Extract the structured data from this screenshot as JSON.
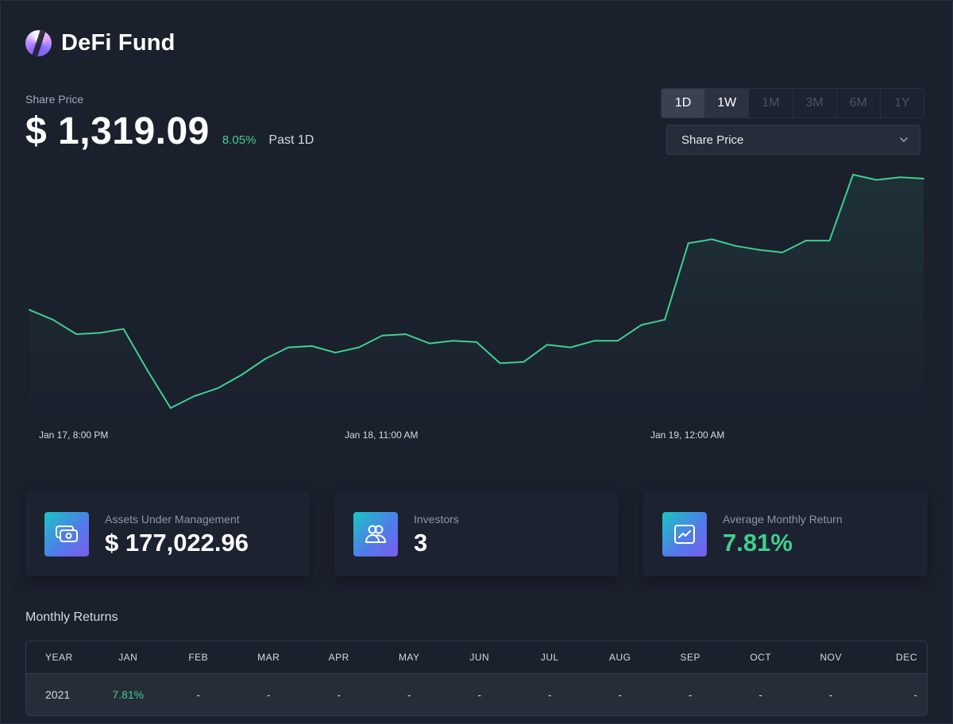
{
  "app": {
    "title": "DeFi Fund"
  },
  "price": {
    "label": "Share Price",
    "value": "$ 1,319.09",
    "change": "8.05%",
    "period": "Past 1D"
  },
  "range_tabs": [
    "1D",
    "1W",
    "1M",
    "3M",
    "6M",
    "1Y"
  ],
  "metric_select": {
    "value": "Share Price"
  },
  "chart_data": {
    "type": "area",
    "title": "",
    "xlabel": "",
    "ylabel": "",
    "x_tick_labels": [
      "Jan 17, 8:00 PM",
      "Jan 18, 11:00 AM",
      "Jan 19, 12:00 AM"
    ],
    "values": [
      1263.5,
      1262.0,
      1259.8,
      1260.0,
      1260.6,
      1254.4,
      1248.6,
      1250.4,
      1251.6,
      1253.6,
      1256.0,
      1257.8,
      1258.0,
      1257.0,
      1257.8,
      1259.6,
      1259.8,
      1258.4,
      1258.8,
      1258.6,
      1255.4,
      1255.6,
      1258.2,
      1257.8,
      1258.8,
      1258.8,
      1261.2,
      1262.0,
      1273.6,
      1274.2,
      1273.2,
      1272.6,
      1272.2,
      1274.0,
      1274.0,
      1284.0,
      1283.2,
      1283.6,
      1283.4
    ],
    "color": "#3fcf8e",
    "grid": false,
    "legend": "none"
  },
  "stats": [
    {
      "label": "Assets Under Management",
      "value": "$ 177,022.96",
      "icon": "cash-icon"
    },
    {
      "label": "Investors",
      "value": "3",
      "icon": "users-icon"
    },
    {
      "label": "Average Monthly Return",
      "value": "7.81%",
      "icon": "trend-chart-icon"
    }
  ],
  "monthly_returns": {
    "title": "Monthly Returns",
    "headers": [
      "YEAR",
      "JAN",
      "FEB",
      "MAR",
      "APR",
      "MAY",
      "JUN",
      "JUL",
      "AUG",
      "SEP",
      "OCT",
      "NOV",
      "DEC"
    ],
    "rows": [
      [
        "2021",
        "7.81%",
        "-",
        "-",
        "-",
        "-",
        "-",
        "-",
        "-",
        "-",
        "-",
        "-",
        "-"
      ]
    ]
  },
  "colors": {
    "accent_green": "#3fcf8e",
    "background": "#1b202d"
  }
}
